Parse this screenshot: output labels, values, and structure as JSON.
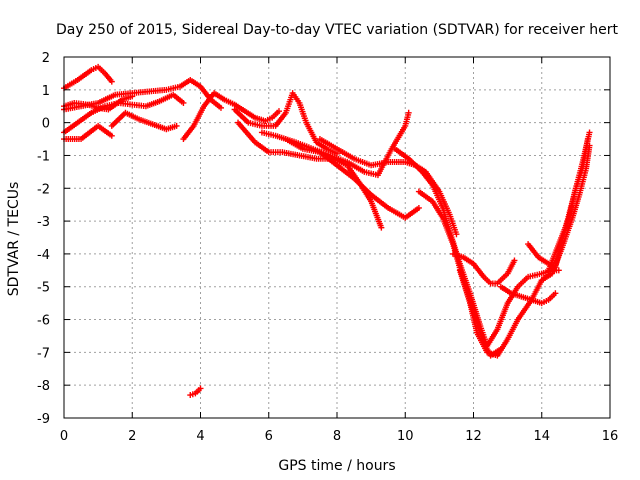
{
  "chart_data": {
    "type": "scatter",
    "title": "Day 250 of 2015, Sidereal Day-to-day VTEC variation (SDTVAR) for receiver hert",
    "xlabel": "GPS time / hours",
    "ylabel": "SDTVAR / TECUs",
    "xlim": [
      0,
      16
    ],
    "ylim": [
      -9,
      2
    ],
    "x_ticks": [
      "0",
      "2",
      "4",
      "6",
      "8",
      "10",
      "12",
      "14",
      "16"
    ],
    "y_ticks": [
      "2",
      "1",
      "0",
      "-1",
      "-2",
      "-3",
      "-4",
      "-5",
      "-6",
      "-7",
      "-8",
      "-9"
    ],
    "grid": true,
    "marker": "plus",
    "color": "#ff0000",
    "series": [
      {
        "name": "track-1",
        "x": [
          0.0,
          0.4,
          0.8,
          1.0,
          1.2,
          1.4
        ],
        "y": [
          1.05,
          1.3,
          1.6,
          1.7,
          1.5,
          1.25
        ]
      },
      {
        "name": "track-2",
        "x": [
          0.0,
          0.5,
          1.0,
          1.5,
          2.0,
          2.5,
          3.0,
          3.4,
          3.7,
          4.0,
          4.3,
          4.6
        ],
        "y": [
          0.4,
          0.5,
          0.6,
          0.85,
          0.9,
          0.95,
          1.0,
          1.1,
          1.3,
          1.1,
          0.7,
          0.45
        ]
      },
      {
        "name": "track-3",
        "x": [
          0.0,
          0.4,
          0.8,
          1.2,
          1.6,
          2.0,
          2.4,
          2.8,
          3.2,
          3.5
        ],
        "y": [
          -0.3,
          0.0,
          0.3,
          0.5,
          0.6,
          0.55,
          0.5,
          0.65,
          0.85,
          0.6
        ]
      },
      {
        "name": "track-4",
        "x": [
          0.0,
          0.5,
          1.0,
          1.4
        ],
        "y": [
          -0.5,
          -0.5,
          -0.1,
          -0.4
        ]
      },
      {
        "name": "track-5",
        "x": [
          1.4,
          1.8,
          2.2,
          2.6,
          3.0,
          3.3
        ],
        "y": [
          -0.1,
          0.3,
          0.1,
          -0.05,
          -0.2,
          -0.1
        ]
      },
      {
        "name": "track-6",
        "x": [
          0.0,
          0.3,
          0.7,
          1.0,
          1.3,
          1.7,
          2.0
        ],
        "y": [
          0.5,
          0.6,
          0.55,
          0.45,
          0.4,
          0.7,
          0.8
        ]
      },
      {
        "name": "track-7",
        "x": [
          3.5,
          3.8,
          4.1,
          4.4,
          4.7,
          5.0,
          5.3,
          5.6,
          5.9,
          6.1,
          6.3
        ],
        "y": [
          -0.5,
          -0.1,
          0.5,
          0.9,
          0.7,
          0.55,
          0.35,
          0.15,
          0.05,
          0.15,
          0.35
        ]
      },
      {
        "name": "track-8",
        "x": [
          5.0,
          5.4,
          5.8,
          6.2,
          6.5,
          6.7,
          6.9,
          7.1,
          7.4,
          7.7,
          8.0
        ],
        "y": [
          0.4,
          0.0,
          -0.1,
          -0.1,
          0.3,
          0.9,
          0.6,
          0.0,
          -0.6,
          -0.8,
          -0.95
        ]
      },
      {
        "name": "track-9",
        "x": [
          5.1,
          5.6,
          6.0,
          6.4,
          6.9,
          7.4,
          7.9,
          8.3,
          8.7,
          9.0,
          9.3
        ],
        "y": [
          0.0,
          -0.6,
          -0.9,
          -0.9,
          -1.0,
          -1.1,
          -1.1,
          -1.3,
          -1.9,
          -2.4,
          -3.2
        ]
      },
      {
        "name": "track-10",
        "x": [
          5.8,
          6.2,
          6.8,
          7.3,
          7.8,
          8.3,
          8.8,
          9.2,
          9.6,
          10.0,
          10.1
        ],
        "y": [
          -0.3,
          -0.4,
          -0.6,
          -0.8,
          -1.0,
          -1.2,
          -1.5,
          -1.6,
          -0.8,
          -0.1,
          0.3
        ]
      },
      {
        "name": "track-11",
        "x": [
          6.5,
          7.0,
          7.5,
          8.0,
          8.5,
          9.0,
          9.5,
          10.0,
          10.4
        ],
        "y": [
          -0.5,
          -0.8,
          -0.9,
          -1.3,
          -1.7,
          -2.2,
          -2.6,
          -2.9,
          -2.6
        ]
      },
      {
        "name": "track-12",
        "x": [
          7.5,
          8.0,
          8.5,
          9.0,
          9.5,
          10.0,
          10.3,
          10.6,
          11.0,
          11.3,
          11.5
        ],
        "y": [
          -0.5,
          -0.8,
          -1.1,
          -1.3,
          -1.2,
          -1.2,
          -1.3,
          -1.5,
          -2.1,
          -2.8,
          -3.4
        ]
      },
      {
        "name": "track-13",
        "x": [
          9.7,
          10.1,
          10.5,
          10.8,
          11.1,
          11.3,
          11.6,
          11.9,
          12.2,
          12.4
        ],
        "y": [
          -0.8,
          -1.1,
          -1.5,
          -1.9,
          -2.6,
          -3.3,
          -4.3,
          -5.2,
          -6.2,
          -6.8
        ]
      },
      {
        "name": "track-14",
        "x": [
          10.4,
          10.8,
          11.1,
          11.4,
          11.7,
          12.0,
          12.3,
          12.5,
          12.8
        ],
        "y": [
          -2.1,
          -2.4,
          -2.9,
          -3.7,
          -4.8,
          -5.8,
          -6.7,
          -7.1,
          -6.9
        ]
      },
      {
        "name": "track-15",
        "x": [
          11.6,
          11.9,
          12.1,
          12.4,
          12.7,
          13.0,
          13.3,
          13.7,
          14.0
        ],
        "y": [
          -4.5,
          -5.5,
          -6.4,
          -7.0,
          -7.1,
          -6.6,
          -6.0,
          -5.4,
          -4.8
        ]
      },
      {
        "name": "track-16",
        "x": [
          11.4,
          11.7,
          12.0,
          12.3,
          12.5,
          12.7,
          13.0,
          13.2
        ],
        "y": [
          -4.0,
          -4.1,
          -4.3,
          -4.7,
          -4.9,
          -4.9,
          -4.6,
          -4.2
        ]
      },
      {
        "name": "track-17",
        "x": [
          12.4,
          12.7,
          13.0,
          13.3,
          13.6,
          14.0,
          14.3,
          14.5
        ],
        "y": [
          -6.8,
          -6.3,
          -5.5,
          -5.0,
          -4.7,
          -4.6,
          -4.5,
          -4.5
        ]
      },
      {
        "name": "track-18",
        "x": [
          12.8,
          13.1,
          13.4,
          13.7,
          14.0,
          14.2,
          14.4
        ],
        "y": [
          -5.0,
          -5.2,
          -5.3,
          -5.4,
          -5.5,
          -5.4,
          -5.2
        ]
      },
      {
        "name": "track-19",
        "x": [
          13.6,
          13.9,
          14.2,
          14.4,
          14.6,
          14.8,
          15.0,
          15.2,
          15.4
        ],
        "y": [
          -3.7,
          -4.1,
          -4.3,
          -4.4,
          -3.6,
          -2.8,
          -2.0,
          -1.2,
          -0.3
        ]
      },
      {
        "name": "track-20",
        "x": [
          14.0,
          14.3,
          14.6,
          14.9,
          15.1,
          15.3,
          15.4
        ],
        "y": [
          -4.8,
          -4.6,
          -3.8,
          -2.9,
          -2.2,
          -1.4,
          -0.7
        ]
      },
      {
        "name": "track-21",
        "x": [
          14.2,
          14.5,
          14.8,
          15.0,
          15.2,
          15.35
        ],
        "y": [
          -4.5,
          -3.7,
          -2.9,
          -2.0,
          -1.4,
          -0.5
        ]
      },
      {
        "name": "track-22",
        "x": [
          3.7,
          3.85,
          4.0
        ],
        "y": [
          -8.3,
          -8.25,
          -8.1
        ]
      }
    ]
  }
}
